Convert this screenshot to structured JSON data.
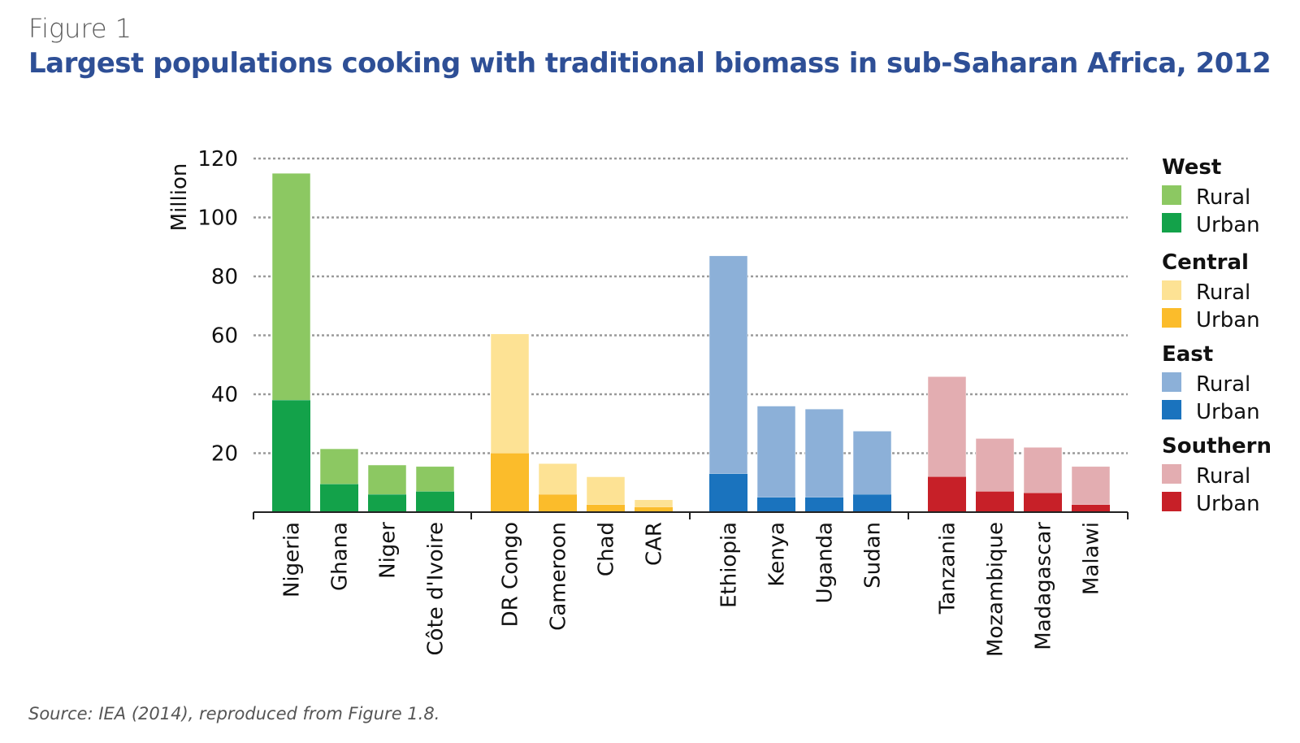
{
  "figure_label": "Figure 1",
  "title": "Largest populations cooking with traditional biomass in sub-Saharan Africa, 2012",
  "source": "Source: IEA (2014), reproduced from Figure 1.8.",
  "chart_data": {
    "type": "bar",
    "stacked": true,
    "ylabel": "Million",
    "xlabel": "",
    "ylim": [
      0,
      120
    ],
    "yticks": [
      20,
      40,
      60,
      80,
      100,
      120
    ],
    "grid": true,
    "legend_position": "right",
    "groups": [
      {
        "name": "West",
        "colors": {
          "Rural": "#8cc862",
          "Urban": "#13a24a"
        },
        "categories": [
          "Nigeria",
          "Ghana",
          "Niger",
          "Côte d'Ivoire"
        ],
        "rural": [
          77,
          12,
          10,
          8.5
        ],
        "urban": [
          38,
          9.5,
          6,
          7
        ]
      },
      {
        "name": "Central",
        "colors": {
          "Rural": "#fde294",
          "Urban": "#fbbc2b"
        },
        "categories": [
          "DR Congo",
          "Cameroon",
          "Chad",
          "CAR"
        ],
        "rural": [
          40.5,
          10.5,
          9.5,
          2.5
        ],
        "urban": [
          20,
          6,
          2.5,
          1.7
        ]
      },
      {
        "name": "East",
        "colors": {
          "Rural": "#8cb0d8",
          "Urban": "#1a73be"
        },
        "categories": [
          "Ethiopia",
          "Kenya",
          "Uganda",
          "Sudan"
        ],
        "rural": [
          74,
          31,
          30,
          21.5
        ],
        "urban": [
          13,
          5,
          5,
          6
        ]
      },
      {
        "name": "Southern",
        "colors": {
          "Rural": "#e3adb1",
          "Urban": "#c72028"
        },
        "categories": [
          "Tanzania",
          "Mozambique",
          "Madagascar",
          "Malawi"
        ],
        "rural": [
          34,
          18,
          15.5,
          13
        ],
        "urban": [
          12,
          7,
          6.5,
          2.5
        ]
      }
    ],
    "legend": {
      "rural_label": "Rural",
      "urban_label": "Urban"
    }
  }
}
